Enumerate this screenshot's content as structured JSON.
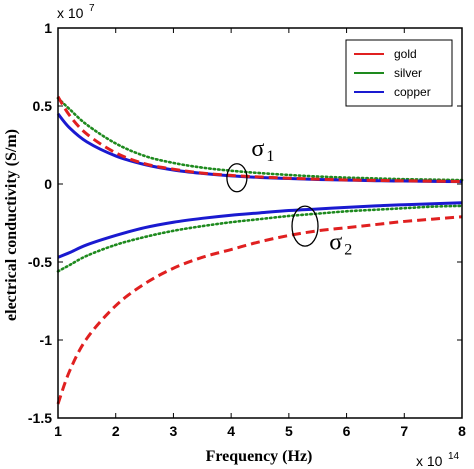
{
  "chart_data": {
    "type": "line",
    "xlabel": "Frequency (Hz)",
    "ylabel": "electrical conductivity (S/m)",
    "x_multiplier": {
      "base": "x 10",
      "exp": "14"
    },
    "y_multiplier": {
      "base": "x 10",
      "exp": "7"
    },
    "xlim": [
      1,
      8
    ],
    "ylim": [
      -1.5,
      1
    ],
    "x_ticks": [
      1,
      2,
      3,
      4,
      5,
      6,
      7,
      8
    ],
    "y_ticks": [
      -1.5,
      -1,
      -0.5,
      0,
      0.5,
      1
    ],
    "y_tick_labels": [
      "-1.5",
      "-1",
      "-0.5",
      "0",
      "0.5",
      "1"
    ],
    "x_tick_labels": [
      "1",
      "2",
      "3",
      "4",
      "5",
      "6",
      "7",
      "8"
    ],
    "legend": {
      "position": "top-right",
      "entries": [
        "gold",
        "silver",
        "copper"
      ]
    },
    "x": [
      1.0,
      1.2,
      1.5,
      2.0,
      2.5,
      3.0,
      3.5,
      4.0,
      4.5,
      5.0,
      5.5,
      6.0,
      6.5,
      7.0,
      7.5,
      8.0
    ],
    "series": [
      {
        "name": "gold",
        "part": "sigma1",
        "color": "#e02020",
        "style": "dashed",
        "values": [
          0.56,
          0.44,
          0.32,
          0.2,
          0.13,
          0.095,
          0.07,
          0.055,
          0.045,
          0.037,
          0.031,
          0.026,
          0.023,
          0.02,
          0.018,
          0.016
        ]
      },
      {
        "name": "silver",
        "part": "sigma1",
        "color": "#1e8a1e",
        "style": "dotted",
        "values": [
          0.55,
          0.48,
          0.38,
          0.26,
          0.18,
          0.135,
          0.105,
          0.085,
          0.07,
          0.058,
          0.048,
          0.041,
          0.036,
          0.031,
          0.028,
          0.025
        ]
      },
      {
        "name": "copper",
        "part": "sigma1",
        "color": "#1a1ad0",
        "style": "solid",
        "values": [
          0.45,
          0.36,
          0.27,
          0.18,
          0.125,
          0.09,
          0.068,
          0.052,
          0.042,
          0.035,
          0.029,
          0.025,
          0.021,
          0.019,
          0.017,
          0.015
        ]
      },
      {
        "name": "gold",
        "part": "sigma2",
        "color": "#e02020",
        "style": "dashed",
        "values": [
          -1.41,
          -1.2,
          -0.99,
          -0.78,
          -0.64,
          -0.54,
          -0.47,
          -0.42,
          -0.37,
          -0.33,
          -0.3,
          -0.28,
          -0.26,
          -0.24,
          -0.225,
          -0.21
        ]
      },
      {
        "name": "silver",
        "part": "sigma2",
        "color": "#1e8a1e",
        "style": "dotted",
        "values": [
          -0.56,
          -0.52,
          -0.46,
          -0.39,
          -0.34,
          -0.3,
          -0.27,
          -0.245,
          -0.225,
          -0.205,
          -0.19,
          -0.175,
          -0.165,
          -0.155,
          -0.145,
          -0.14
        ]
      },
      {
        "name": "copper",
        "part": "sigma2",
        "color": "#1a1ad0",
        "style": "solid",
        "values": [
          -0.47,
          -0.44,
          -0.39,
          -0.33,
          -0.28,
          -0.245,
          -0.22,
          -0.2,
          -0.185,
          -0.17,
          -0.16,
          -0.15,
          -0.14,
          -0.133,
          -0.127,
          -0.12
        ]
      }
    ],
    "annotations": [
      {
        "label": "σ",
        "sub": "1",
        "at": [
          4.15,
          0.06
        ]
      },
      {
        "label": "σ",
        "sub": "2",
        "at": [
          5.3,
          -0.28
        ]
      }
    ]
  }
}
